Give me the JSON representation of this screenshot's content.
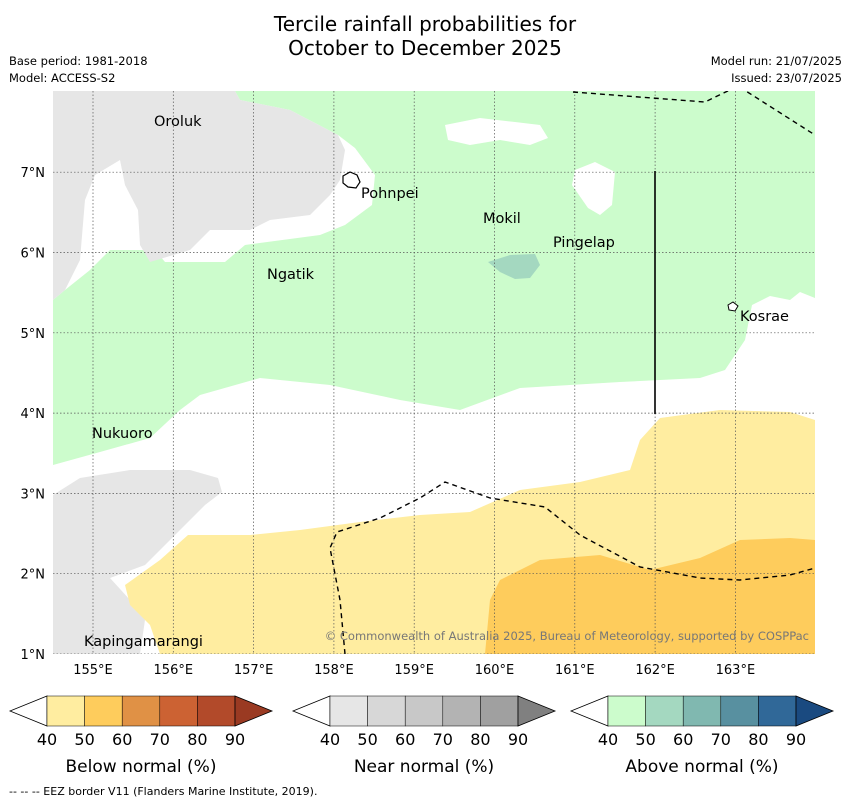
{
  "header": {
    "title_line1": "Tercile rainfall probabilities for",
    "title_line2": "October to December 2025",
    "base_period": "Base period: 1981-2018",
    "model": "Model: ACCESS-S2",
    "model_run": "Model run: 21/07/2025",
    "issued": "Issued: 23/07/2025"
  },
  "map": {
    "lat_ticks": [
      "1°N",
      "2°N",
      "3°N",
      "4°N",
      "5°N",
      "6°N",
      "7°N"
    ],
    "lon_ticks": [
      "155°E",
      "156°E",
      "157°E",
      "158°E",
      "159°E",
      "160°E",
      "161°E",
      "162°E",
      "163°E"
    ],
    "places": [
      {
        "name": "Oroluk"
      },
      {
        "name": "Pohnpei"
      },
      {
        "name": "Mokil"
      },
      {
        "name": "Pingelap"
      },
      {
        "name": "Ngatik"
      },
      {
        "name": "Kosrae"
      },
      {
        "name": "Nukuoro"
      },
      {
        "name": "Kapingamarangi"
      }
    ],
    "copyright": "© Commonwealth of Australia 2025, Bureau of Meteorology, supported by COSPPac"
  },
  "colorbars": [
    {
      "label": "Below normal (%)",
      "ticks": [
        "40",
        "50",
        "60",
        "70",
        "80",
        "90"
      ],
      "colors": [
        "#ffffff",
        "#ffeda0",
        "#fecc5c",
        "#e09145",
        "#cc6233",
        "#b24a2a",
        "#9a3a22"
      ]
    },
    {
      "label": "Near normal (%)",
      "ticks": [
        "40",
        "50",
        "60",
        "70",
        "80",
        "90"
      ],
      "colors": [
        "#ffffff",
        "#e6e6e6",
        "#d7d7d7",
        "#c8c8c8",
        "#b3b3b3",
        "#a0a0a0",
        "#808080"
      ]
    },
    {
      "label": "Above normal (%)",
      "ticks": [
        "40",
        "50",
        "60",
        "70",
        "80",
        "90"
      ],
      "colors": [
        "#ffffff",
        "#ccfccc",
        "#a4d8c0",
        "#80b8b0",
        "#5890a0",
        "#306898",
        "#1a4a80"
      ]
    }
  ],
  "footer": "--  --  -- EEZ border V11 (Flanders Marine Institute, 2019).",
  "colors": {
    "above_50": "#ccfccc",
    "near_50": "#e6e6e6",
    "below_50": "#ffeda0",
    "below_60": "#fecc5c",
    "above_60": "#a4d8c0"
  }
}
